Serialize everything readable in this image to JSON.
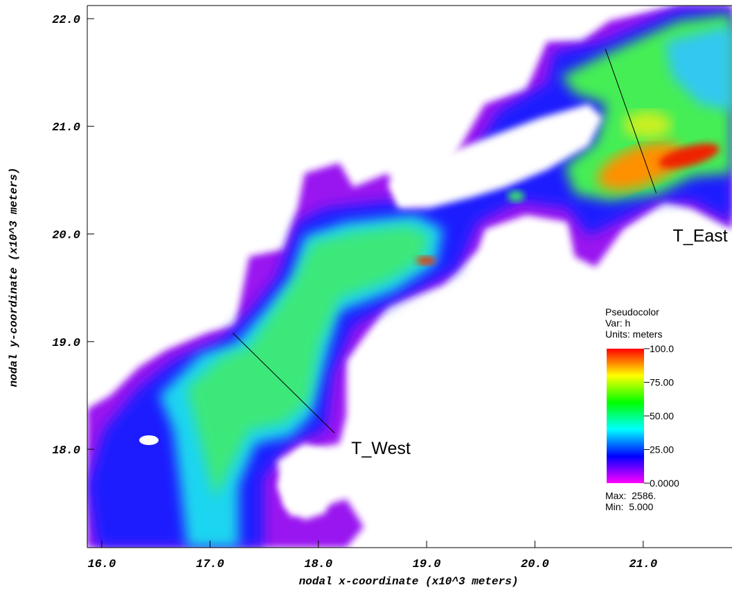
{
  "chart_data": {
    "type": "pseudocolor",
    "xlabel": "nodal x-coordinate (x10^3 meters)",
    "ylabel": "nodal y-coordinate (x10^3 meters)",
    "xlim": [
      15.866,
      21.82
    ],
    "ylim": [
      17.086,
      22.122
    ],
    "xticks": [
      {
        "value": 16,
        "label": "16.0"
      },
      {
        "value": 17,
        "label": "17.0"
      },
      {
        "value": 18,
        "label": "18.0"
      },
      {
        "value": 19,
        "label": "19.0"
      },
      {
        "value": 20,
        "label": "20.0"
      },
      {
        "value": 21,
        "label": "21.0"
      }
    ],
    "yticks": [
      {
        "value": 18,
        "label": "18.0"
      },
      {
        "value": 19,
        "label": "19.0"
      },
      {
        "value": 20,
        "label": "20.0"
      },
      {
        "value": 21,
        "label": "21.0"
      },
      {
        "value": 22,
        "label": "22.0"
      }
    ],
    "transects": [
      {
        "label": "T_West",
        "x": [
          17.21,
          18.15
        ],
        "y": [
          19.08,
          18.15
        ]
      },
      {
        "label": "T_East",
        "x": [
          20.65,
          21.12
        ],
        "y": [
          21.72,
          20.38
        ]
      }
    ],
    "legend": {
      "title": "Pseudocolor",
      "variable": "Var: h",
      "units": "Units: meters",
      "lim": [
        0,
        100
      ],
      "ticks": [
        {
          "value": 100,
          "label": "100.0"
        },
        {
          "value": 75,
          "label": "75.00"
        },
        {
          "value": 50,
          "label": "50.00"
        },
        {
          "value": 25,
          "label": "25.00"
        },
        {
          "value": 0,
          "label": "0.0000"
        }
      ],
      "colors": [
        "#ff00ff",
        "#0000ff",
        "#00ffff",
        "#00ff00",
        "#ffff00",
        "#ff0000"
      ],
      "max": "Max:  2586.",
      "min": "Min:  5.000"
    }
  }
}
